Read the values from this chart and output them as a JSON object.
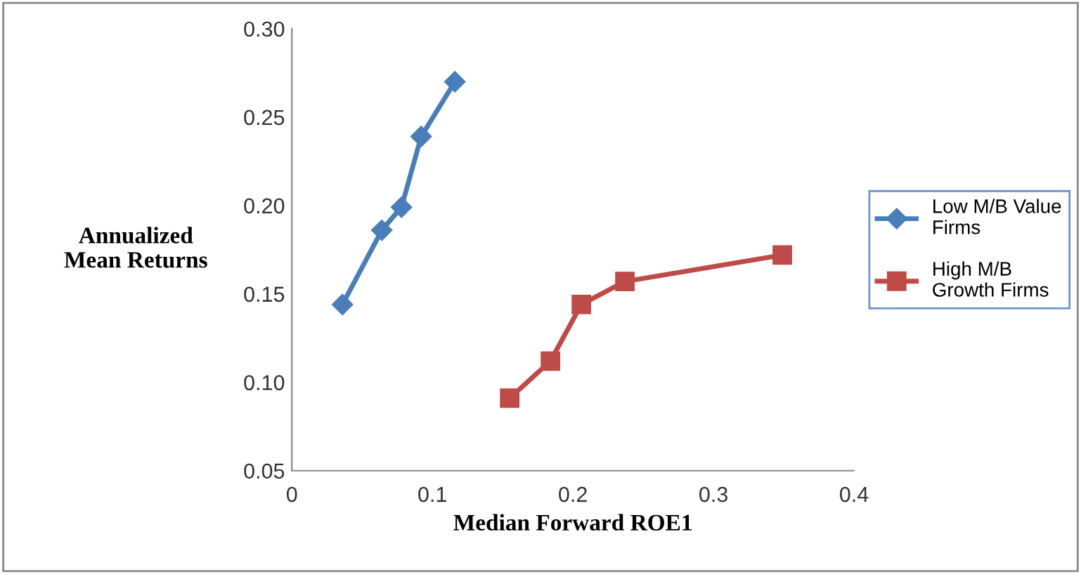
{
  "chart_data": {
    "type": "line",
    "xlabel": "Median Forward ROE1",
    "ylabel": "Annualized\nMean Returns",
    "series": [
      {
        "name": "Low M/B Value\nFirms",
        "color": "#4a7ebb",
        "marker": "diamond",
        "x": [
          0.036,
          0.064,
          0.078,
          0.092,
          0.116
        ],
        "values": [
          0.144,
          0.186,
          0.199,
          0.239,
          0.27
        ]
      },
      {
        "name": "High M/B\nGrowth Firms",
        "color": "#be4b48",
        "marker": "square",
        "x": [
          0.155,
          0.184,
          0.206,
          0.237,
          0.349
        ],
        "values": [
          0.091,
          0.112,
          0.144,
          0.157,
          0.172
        ]
      }
    ],
    "xlim": [
      0,
      0.4
    ],
    "xticks": [
      {
        "value": 0,
        "label": "0"
      },
      0.1,
      0.2,
      0.3,
      0.4
    ],
    "ylim": [
      0.05,
      0.3
    ],
    "yticks": [
      {
        "value": 0.05,
        "label": "0.05"
      },
      {
        "value": 0.1,
        "label": "0.10"
      },
      0.15,
      {
        "value": 0.2,
        "label": "0.20"
      },
      0.25,
      {
        "value": 0.3,
        "label": "0.30"
      }
    ],
    "grid": false,
    "legend": "right",
    "line_style": "solid"
  }
}
